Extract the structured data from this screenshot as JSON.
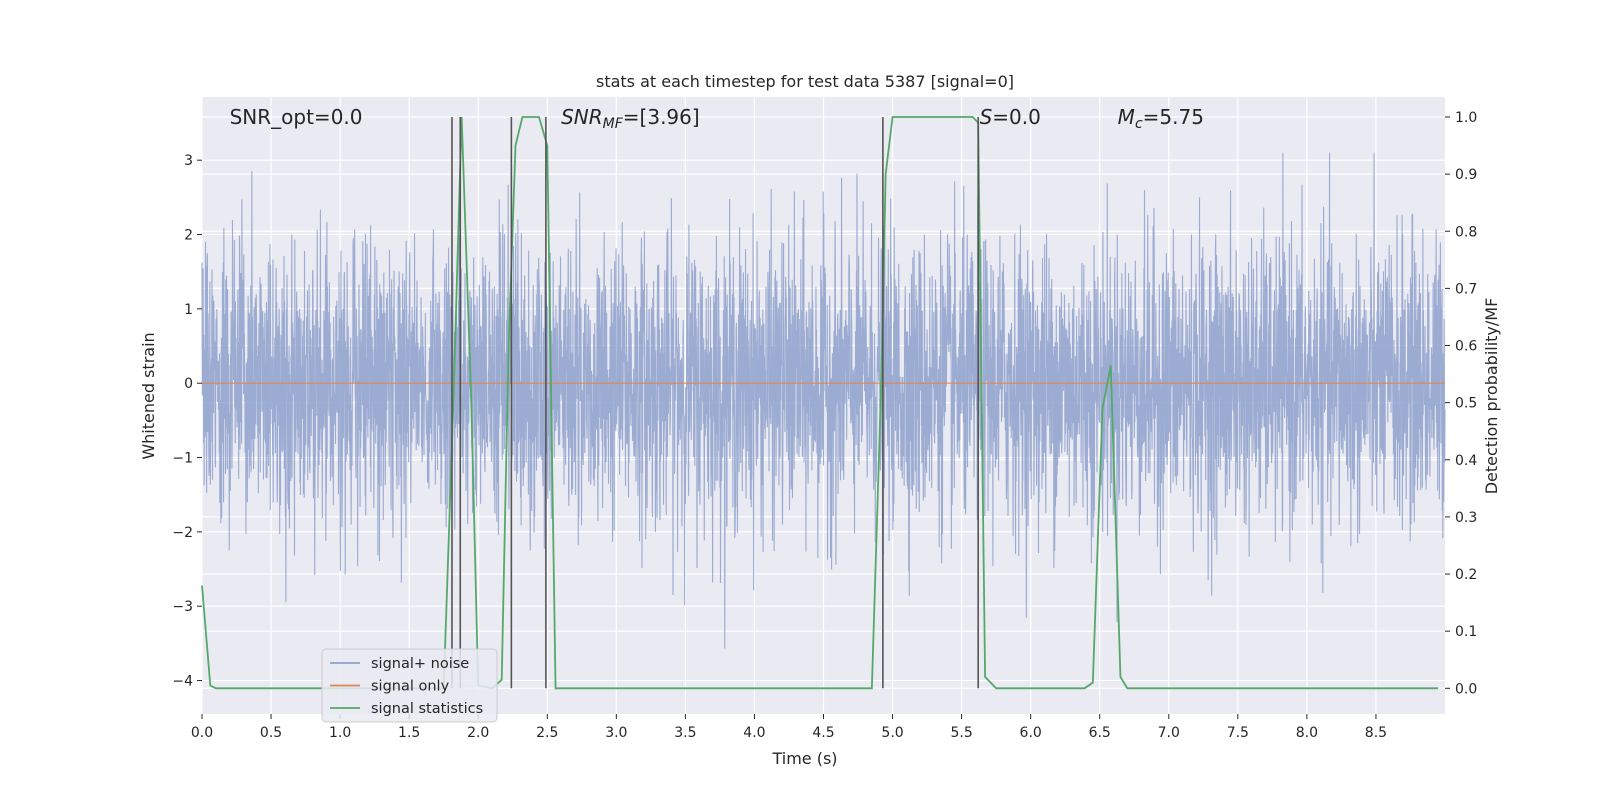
{
  "chart_data": {
    "type": "line",
    "title": "stats at each timestep for test data 5387 [signal=0]",
    "xlabel": "Time (s)",
    "ylabel": "Whitened strain",
    "ylabel_right": "Detection probability/MF",
    "xlim": [
      0,
      9
    ],
    "ylim_left": [
      -4.45,
      3.85
    ],
    "ylim_right": [
      -0.045,
      1.035
    ],
    "x_ticks": [
      0.0,
      0.5,
      1.0,
      1.5,
      2.0,
      2.5,
      3.0,
      3.5,
      4.0,
      4.5,
      5.0,
      5.5,
      6.0,
      6.5,
      7.0,
      7.5,
      8.0,
      8.5
    ],
    "x_tick_labels": [
      "0.0",
      "0.5",
      "1.0",
      "1.5",
      "2.0",
      "2.5",
      "3.0",
      "3.5",
      "4.0",
      "4.5",
      "5.0",
      "5.5",
      "6.0",
      "6.5",
      "7.0",
      "7.5",
      "8.0",
      "8.5"
    ],
    "y_left_ticks": [
      -4,
      -3,
      -2,
      -1,
      0,
      1,
      2,
      3
    ],
    "y_left_tick_labels": [
      "−4",
      "−3",
      "−2",
      "−1",
      "0",
      "1",
      "2",
      "3"
    ],
    "y_right_ticks": [
      0.0,
      0.1,
      0.2,
      0.3,
      0.4,
      0.5,
      0.6,
      0.7,
      0.8,
      0.9,
      1.0
    ],
    "y_right_tick_labels": [
      "0.0",
      "0.1",
      "0.2",
      "0.3",
      "0.4",
      "0.5",
      "0.6",
      "0.7",
      "0.8",
      "0.9",
      "1.0"
    ],
    "grid": true,
    "legend_position": "lower-left",
    "annotations": [
      {
        "text": "SNR_opt=0.0",
        "x": 0.2
      },
      {
        "text": "SNR",
        "sub": "MF",
        "suffix": "=[3.96]",
        "x": 2.6,
        "italic": true
      },
      {
        "text": "S",
        "suffix": "=0.0",
        "x": 5.63,
        "italic": true
      },
      {
        "text": "M",
        "sub": "c",
        "suffix": "=5.75",
        "x": 6.63,
        "italic": true
      }
    ],
    "series": [
      {
        "name": "signal+ noise",
        "color": "#8da0cb",
        "kind": "noise",
        "sample_rate": 512,
        "std": 0.95,
        "clip": [
          -3.9,
          3.1
        ]
      },
      {
        "name": "signal only",
        "color": "#dd8452",
        "kind": "constant",
        "value": 0
      },
      {
        "name": "signal statistics",
        "color": "#55a868",
        "axis": "right",
        "x": [
          0.0,
          0.06,
          0.1,
          1.6,
          1.75,
          1.82,
          1.88,
          1.95,
          2.0,
          2.1,
          2.17,
          2.22,
          2.27,
          2.32,
          2.38,
          2.44,
          2.5,
          2.56,
          2.65,
          3.0,
          4.0,
          4.85,
          4.92,
          4.95,
          5.0,
          5.5,
          5.58,
          5.62,
          5.67,
          5.75,
          6.0,
          6.39,
          6.45,
          6.52,
          6.58,
          6.65,
          6.7,
          7.0,
          8.0,
          8.95
        ],
        "y": [
          0.18,
          0.005,
          0.0,
          0.0,
          0.0,
          0.5,
          1.0,
          0.5,
          0.005,
          0.0,
          0.015,
          0.6,
          0.95,
          1.0,
          1.0,
          1.0,
          0.95,
          0.0,
          0.0,
          0.0,
          0.0,
          0.0,
          0.55,
          0.9,
          1.0,
          1.0,
          1.0,
          0.99,
          0.02,
          0.0,
          0.0,
          0.0,
          0.01,
          0.49,
          0.565,
          0.02,
          0.0,
          0.0,
          0.0,
          0.0
        ]
      }
    ],
    "vertical_lines": {
      "color": "#555555",
      "x": [
        1.81,
        1.87,
        2.24,
        2.49,
        4.93,
        5.62
      ],
      "y_range_right": [
        0.0,
        1.0
      ]
    }
  }
}
